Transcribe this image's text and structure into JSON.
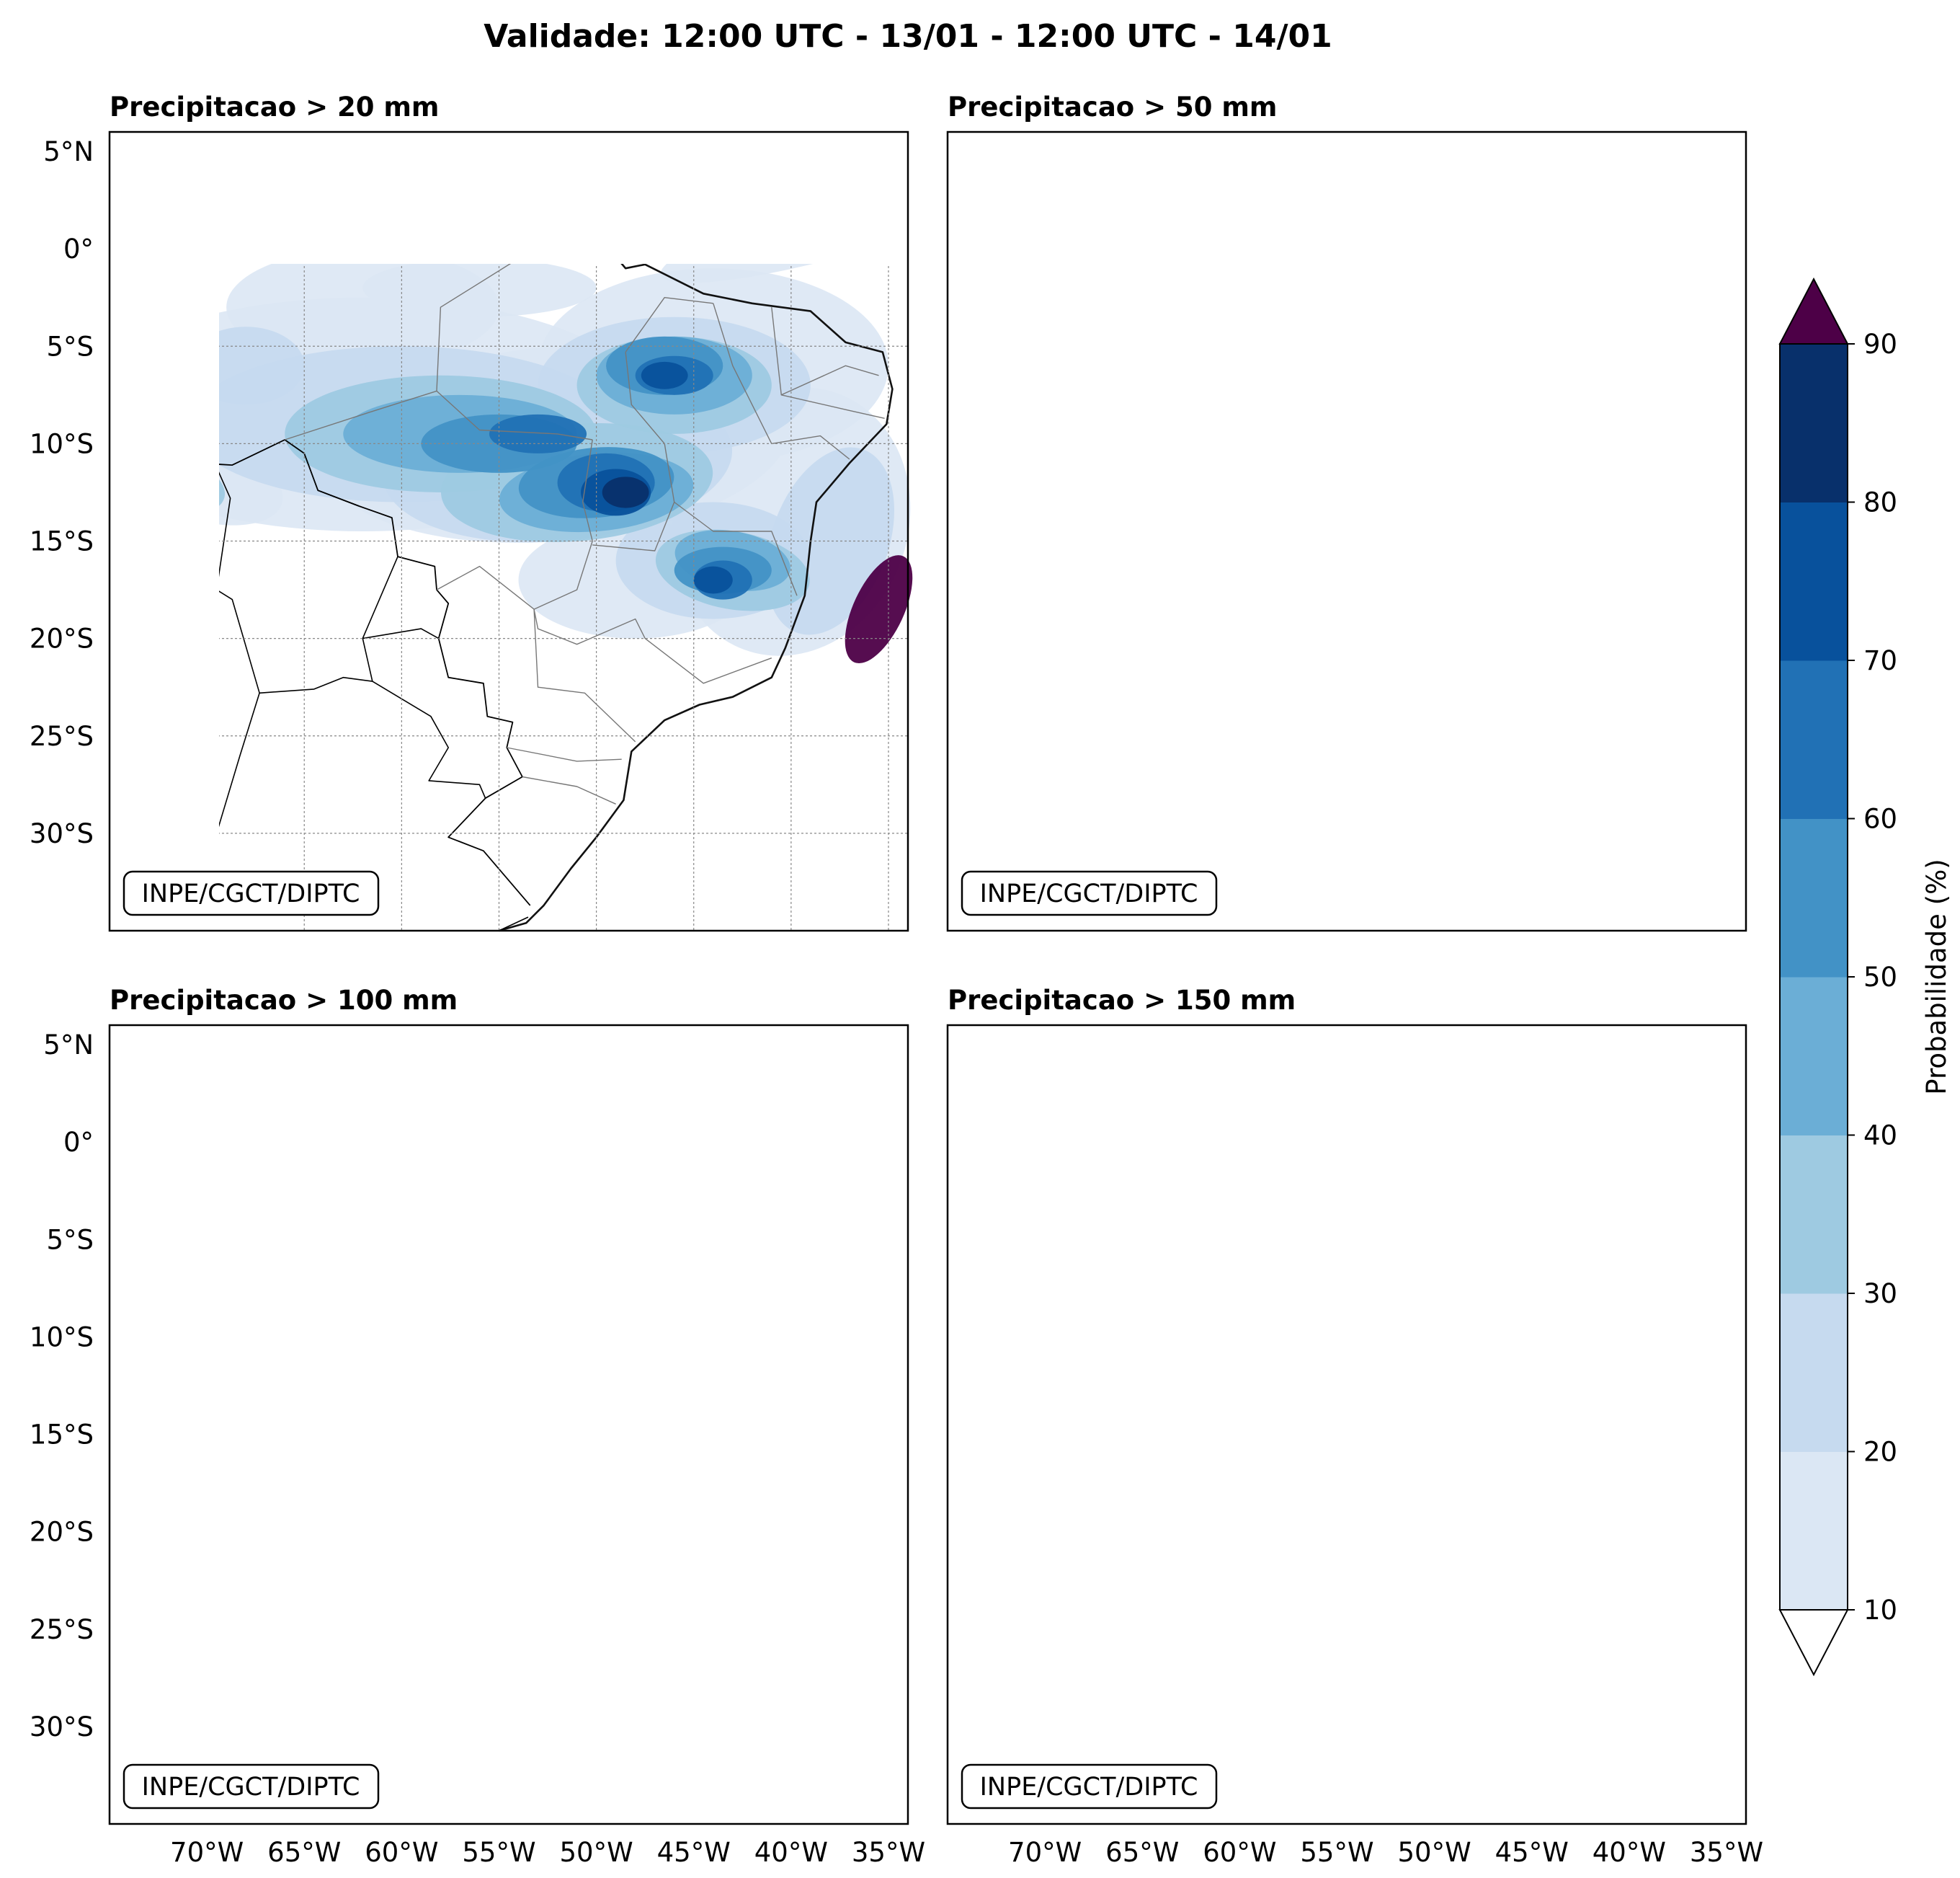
{
  "title": "Validade: 12:00 UTC - 13/01 - 12:00 UTC - 14/01",
  "panels": [
    {
      "title": "Precipitacao > 20 mm",
      "watermark": "INPE/CGCT/DIPTC"
    },
    {
      "title": "Precipitacao > 50 mm",
      "watermark": "INPE/CGCT/DIPTC"
    },
    {
      "title": "Precipitacao > 100 mm",
      "watermark": "INPE/CGCT/DIPTC"
    },
    {
      "title": "Precipitacao > 150 mm",
      "watermark": "INPE/CGCT/DIPTC"
    }
  ],
  "lat_labels": [
    "5°N",
    "0°",
    "5°S",
    "10°S",
    "15°S",
    "20°S",
    "25°S",
    "30°S"
  ],
  "lon_labels": [
    "70°W",
    "65°W",
    "60°W",
    "55°W",
    "50°W",
    "45°W",
    "40°W",
    "35°W"
  ],
  "colorbar": {
    "label": "Probabilidade (%)",
    "ticks": [
      "10",
      "20",
      "30",
      "40",
      "50",
      "60",
      "70",
      "80",
      "90"
    ],
    "colors": [
      "#dbe7f4",
      "#c6daef",
      "#9ecae1",
      "#6baed6",
      "#4292c6",
      "#2171b5",
      "#08519c",
      "#08306b"
    ],
    "extend_max_color": "#4d0047",
    "extend_min_color": "#ffffff"
  }
}
